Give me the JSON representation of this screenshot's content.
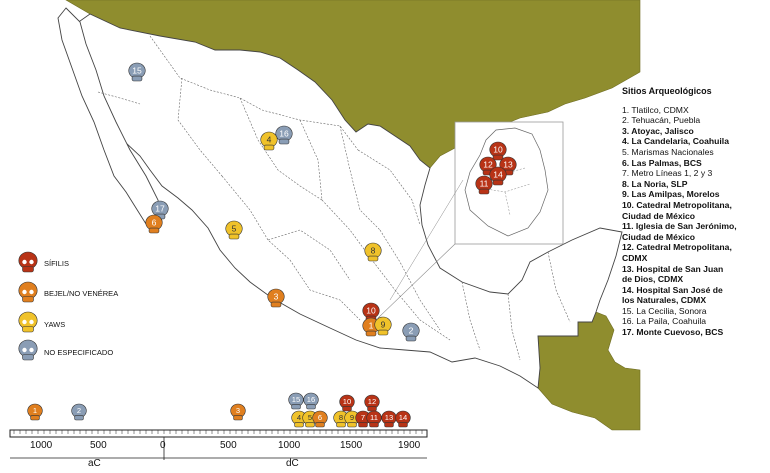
{
  "colors": {
    "land": "#ffffff",
    "neighbor": "#8f8d2e",
    "sea": "#ffffff",
    "border": "#555555",
    "sifilis": "#b83316",
    "bejel": "#e07f1f",
    "yaws": "#f0c22a",
    "no_especificado": "#8a9db5"
  },
  "legend": {
    "title": "Sitios Arqueológicos",
    "sites": [
      {
        "text": "1. Tlatilco, CDMX",
        "bold": false
      },
      {
        "text": "2. Tehuacán, Puebla",
        "bold": false
      },
      {
        "text": "3. Atoyac, Jalisco",
        "bold": true
      },
      {
        "text": "4. La Candelaria, Coahuila",
        "bold": true
      },
      {
        "text": "5. Marismas Nacionales",
        "bold": false
      },
      {
        "text": "6.  Las Palmas, BCS",
        "bold": true
      },
      {
        "text": "7. Metro Líneas 1, 2 y 3",
        "bold": false
      },
      {
        "text": "8. La Noria, SLP",
        "bold": true
      },
      {
        "text": "9. Las Amilpas, Morelos",
        "bold": true
      },
      {
        "text": "10. Catedral Metropolitana,\nCiudad de México",
        "bold": true
      },
      {
        "text": "11. Iglesia de San Jerónimo,\nCiudad de México",
        "bold": true
      },
      {
        "text": "12. Catedral Metropolitana,\nCDMX",
        "bold": true
      },
      {
        "text": "13. Hospital de San Juan\nde Dios, CDMX",
        "bold": true
      },
      {
        "text": "14. Hospital San José de\nlos Naturales, CDMX",
        "bold": true
      },
      {
        "text": "15. La Cecilia, Sonora",
        "bold": false
      },
      {
        "text": "16. La Paila, Coahuila",
        "bold": false
      },
      {
        "text": "17. Monte Cuevoso, BCS",
        "bold": true
      }
    ]
  },
  "categories": [
    {
      "key": "sifilis",
      "label": "SÍFILIS"
    },
    {
      "key": "bejel",
      "label": "BEJEL/NO VENÉREA"
    },
    {
      "key": "yaws",
      "label": "YAWS"
    },
    {
      "key": "no_especificado",
      "label": "NO ESPECIFICADO"
    }
  ],
  "timeline": {
    "era_bc": "aC",
    "era_ad": "dC",
    "ticks": [
      {
        "label": "1000",
        "year": -1000
      },
      {
        "label": "500",
        "year": -500
      },
      {
        "label": "0",
        "year": 0
      },
      {
        "label": "500",
        "year": 500
      },
      {
        "label": "1000",
        "year": 1000
      },
      {
        "label": "1500",
        "year": 1500
      },
      {
        "label": "1900",
        "year": 1900
      }
    ]
  },
  "map_markers": [
    {
      "n": "15",
      "type": "no_especificado"
    },
    {
      "n": "16",
      "type": "no_especificado"
    },
    {
      "n": "4",
      "type": "yaws"
    },
    {
      "n": "17",
      "type": "no_especificado"
    },
    {
      "n": "6",
      "type": "bejel"
    },
    {
      "n": "5",
      "type": "yaws"
    },
    {
      "n": "8",
      "type": "yaws"
    },
    {
      "n": "3",
      "type": "bejel"
    },
    {
      "n": "10",
      "type": "sifilis"
    },
    {
      "n": "1",
      "type": "bejel"
    },
    {
      "n": "9",
      "type": "yaws"
    },
    {
      "n": "2",
      "type": "no_especificado"
    }
  ],
  "inset_markers": [
    {
      "n": "10",
      "type": "sifilis"
    },
    {
      "n": "12",
      "type": "sifilis"
    },
    {
      "n": "13",
      "type": "sifilis"
    },
    {
      "n": "14",
      "type": "sifilis"
    },
    {
      "n": "11",
      "type": "sifilis"
    }
  ],
  "timeline_markers": [
    {
      "n": "1",
      "type": "bejel"
    },
    {
      "n": "2",
      "type": "no_especificado"
    },
    {
      "n": "3",
      "type": "bejel"
    },
    {
      "n": "15",
      "type": "no_especificado"
    },
    {
      "n": "16",
      "type": "no_especificado"
    },
    {
      "n": "4",
      "type": "yaws"
    },
    {
      "n": "5",
      "type": "yaws"
    },
    {
      "n": "6",
      "type": "bejel"
    },
    {
      "n": "10",
      "type": "sifilis"
    },
    {
      "n": "12",
      "type": "sifilis"
    },
    {
      "n": "8",
      "type": "yaws"
    },
    {
      "n": "9",
      "type": "yaws"
    },
    {
      "n": "7",
      "type": "sifilis"
    },
    {
      "n": "11",
      "type": "sifilis"
    },
    {
      "n": "13",
      "type": "sifilis"
    },
    {
      "n": "14",
      "type": "sifilis"
    }
  ]
}
